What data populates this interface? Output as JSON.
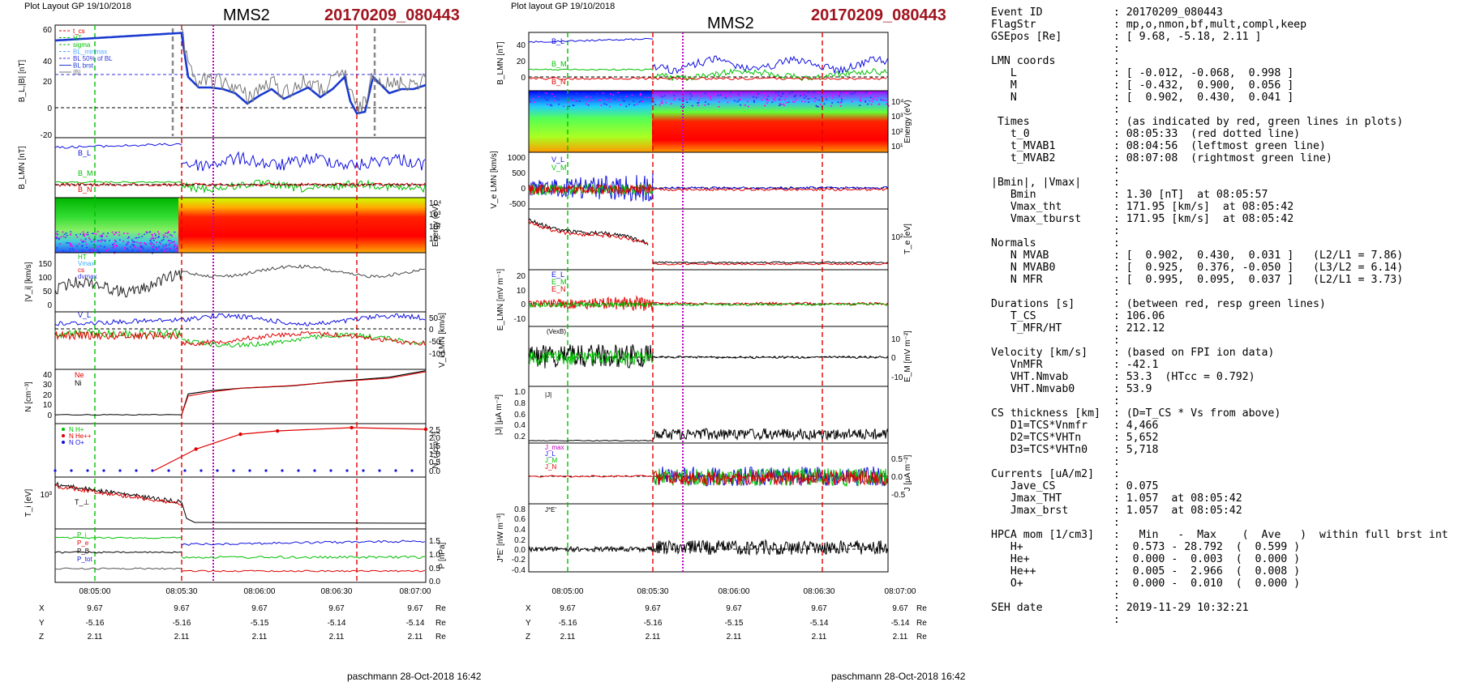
{
  "left_panel": {
    "layout_label": "Plot Layout GP 19/10/2018",
    "spacecraft": "MMS2",
    "event_id": "20170209_080443",
    "footer": "paschmann 28-Oct-2018 16:42",
    "time_ticks": [
      "08:05:00",
      "08:05:30",
      "08:06:00",
      "08:06:30",
      "08:07:00"
    ],
    "ephem_labels": [
      "X",
      "Y",
      "Z"
    ],
    "ephem_unit": "Re",
    "ephem_values": {
      "X": [
        "9.67",
        "9.67",
        "9.67",
        "9.67",
        "9.67"
      ],
      "Y": [
        "-5.16",
        "-5.16",
        "-5.15",
        "-5.14",
        "-5.14"
      ],
      "Z": [
        "2.11",
        "2.11",
        "2.11",
        "2.11",
        "2.11"
      ]
    }
  },
  "right_panel": {
    "layout_label": "Plot layout GP 19/10/2018",
    "spacecraft": "MMS2",
    "event_id": "20170209_080443",
    "footer": "paschmann 28-Oct-2018 16:42",
    "time_ticks": [
      "08:05:00",
      "08:05:30",
      "08:06:00",
      "08:06:30",
      "08:07:00"
    ],
    "ephem_labels": [
      "X",
      "Y",
      "Z"
    ],
    "ephem_unit": "Re",
    "ephem_values": {
      "X": [
        "9.67",
        "9.67",
        "9.67",
        "9.67",
        "9.67"
      ],
      "Y": [
        "-5.16",
        "-5.16",
        "-5.15",
        "-5.14",
        "-5.14"
      ],
      "Z": [
        "2.11",
        "2.11",
        "2.11",
        "2.11",
        "2.11"
      ]
    }
  },
  "chart_data": [
    {
      "type": "line",
      "panel": "left-1",
      "ylabel": "B_L, |B| [nT]",
      "ylim": [
        -20,
        55
      ],
      "yticks": [
        "60",
        "40",
        "20",
        "0",
        "-20"
      ],
      "legend": [
        "t_cs",
        "HT",
        "sigma",
        "BL_minmax",
        "BL 50% of BL",
        "BL brst",
        "|B|"
      ],
      "series": [
        {
          "name": "B_L brst",
          "x": [
            0,
            0.3,
            0.42,
            0.45,
            0.5,
            0.6,
            0.7,
            0.75,
            0.82,
            0.9,
            1.0
          ],
          "values": [
            45,
            50,
            52,
            8,
            5,
            4,
            15,
            1,
            -5,
            13,
            8
          ]
        }
      ]
    },
    {
      "type": "line",
      "panel": "left-2",
      "ylabel": "B_LMN [nT]",
      "legend": [
        "B_L",
        "B_M",
        "B_N"
      ]
    },
    {
      "type": "heatmap",
      "panel": "left-3",
      "ylabel": "Energy (eV)",
      "yticks": [
        "10^4",
        "10^3",
        "10^2",
        "10^1"
      ]
    },
    {
      "type": "line",
      "panel": "left-4",
      "ylabel": "|V_i| [km/s]",
      "yticks": [
        "150",
        "100",
        "50",
        "0"
      ],
      "legend": [
        "HT",
        "Vmax",
        "cs",
        "dvmax"
      ]
    },
    {
      "type": "line",
      "panel": "left-5",
      "ylabel": "V_i LMN [km/s]",
      "yticks": [
        "50",
        "0",
        "-50",
        "-100"
      ],
      "legend": [
        "V_L"
      ]
    },
    {
      "type": "line",
      "panel": "left-6",
      "ylabel": "N [cm^-3]",
      "yticks": [
        "40",
        "30",
        "20",
        "10",
        "0"
      ],
      "legend": [
        "Ne",
        "Ni"
      ]
    },
    {
      "type": "line",
      "panel": "left-7",
      "ylabel": "N_i [cm^-3]",
      "yticks": [
        "2.5",
        "2.0",
        "1.5",
        "1.0",
        "0.5",
        "0.0"
      ],
      "legend": [
        "N H+",
        "N He++",
        "N O+"
      ],
      "series": [
        {
          "name": "N He++",
          "x": [
            0.38,
            0.5,
            0.6,
            0.8,
            1.0
          ],
          "values": [
            1.3,
            2.2,
            2.4,
            2.6,
            2.5
          ]
        }
      ]
    },
    {
      "type": "line",
      "panel": "left-8",
      "ylabel": "T_i [eV]",
      "yticks": [
        "10^3"
      ],
      "legend": [
        "T_||",
        "T_⊥"
      ]
    },
    {
      "type": "line",
      "panel": "left-9",
      "ylabel": "P [nPa]",
      "yticks": [
        "1.5",
        "1.0",
        "0.5",
        "0.0"
      ],
      "legend": [
        "P_i",
        "P_e",
        "P_B",
        "P_tot"
      ]
    },
    {
      "type": "line",
      "panel": "right-1",
      "ylabel": "B_LMN [nT]",
      "yticks": [
        "40",
        "20",
        "0"
      ],
      "legend": [
        "B_L",
        "B_M",
        "B_N"
      ]
    },
    {
      "type": "heatmap",
      "panel": "right-2",
      "ylabel": "Energy (eV)",
      "yticks": [
        "10^4",
        "10^3",
        "10^2",
        "10^1"
      ]
    },
    {
      "type": "line",
      "panel": "right-3",
      "ylabel": "V_e LMN [km/s]",
      "yticks": [
        "1000",
        "500",
        "0",
        "-500"
      ],
      "legend": [
        "V_L",
        "V_M",
        "V_N"
      ]
    },
    {
      "type": "line",
      "panel": "right-4",
      "ylabel": "T_e [eV]",
      "yticks": [
        "10^2"
      ]
    },
    {
      "type": "line",
      "panel": "right-5",
      "ylabel": "E_LMN [mV m^-1]",
      "yticks": [
        "20",
        "10",
        "0",
        "-10"
      ],
      "legend": [
        "E_L",
        "E_M",
        "E_N"
      ]
    },
    {
      "type": "line",
      "panel": "right-6",
      "ylabel": "E_M [mV m^-2]",
      "yticks": [
        "10",
        "0",
        "-10"
      ],
      "legend": [
        "(VexB)"
      ]
    },
    {
      "type": "line",
      "panel": "right-7",
      "ylabel": "|J| [μA m^-2]",
      "yticks": [
        "1.0",
        "0.8",
        "0.6",
        "0.4",
        "0.2"
      ],
      "legend": [
        "|J|"
      ]
    },
    {
      "type": "line",
      "panel": "right-8",
      "ylabel": "J [μA m^-2]",
      "yticks": [
        "0.5",
        "0.0",
        "-0.5"
      ],
      "legend": [
        "J_max",
        "J_L",
        "J_M",
        "J_N"
      ]
    },
    {
      "type": "line",
      "panel": "right-9",
      "ylabel": "J*E' [nW m^-3]",
      "yticks": [
        "0.8",
        "0.6",
        "0.4",
        "0.2",
        "0.0",
        "-0.2",
        "-0.4"
      ],
      "legend": [
        "J*E'"
      ]
    }
  ],
  "info_lines": [
    [
      "Event ID",
      ": 20170209_080443"
    ],
    [
      "FlagStr",
      ": mp,o,nmon,bf,mult,compl,keep"
    ],
    [
      "GSEpos [Re]",
      ": [ 9.68, -5.18, 2.11 ]"
    ],
    [
      "",
      ":"
    ],
    [
      "LMN coords",
      ":"
    ],
    [
      "   L",
      ": [ -0.012, -0.068,  0.998 ]"
    ],
    [
      "   M",
      ": [ -0.432,  0.900,  0.056 ]"
    ],
    [
      "   N",
      ": [  0.902,  0.430,  0.041 ]"
    ],
    [
      "",
      ":"
    ],
    [
      " Times",
      ": (as indicated by red, green lines in plots)"
    ],
    [
      "   t_0",
      ": 08:05:33  (red dotted line)"
    ],
    [
      "   t_MVAB1",
      ": 08:04:56  (leftmost green line)"
    ],
    [
      "   t_MVAB2",
      ": 08:07:08  (rightmost green line)"
    ],
    [
      "",
      ":"
    ],
    [
      "|Bmin|, |Vmax|",
      ":"
    ],
    [
      "   Bmin",
      ": 1.30 [nT]  at 08:05:57"
    ],
    [
      "   Vmax_tht",
      ": 171.95 [km/s]  at 08:05:42"
    ],
    [
      "   Vmax_tburst",
      ": 171.95 [km/s]  at 08:05:42"
    ],
    [
      "",
      ":"
    ],
    [
      "Normals",
      ":"
    ],
    [
      "   N MVAB",
      ": [  0.902,  0.430,  0.031 ]   (L2/L1 = 7.86)"
    ],
    [
      "   N MVAB0",
      ": [  0.925,  0.376, -0.050 ]   (L3/L2 = 6.14)"
    ],
    [
      "   N MFR",
      ": [  0.995,  0.095,  0.037 ]   (L2/L1 = 3.73)"
    ],
    [
      "",
      ":"
    ],
    [
      "Durations [s]",
      ": (between red, resp green lines)"
    ],
    [
      "   T_CS",
      ": 106.06"
    ],
    [
      "   T_MFR/HT",
      ": 212.12"
    ],
    [
      "",
      ":"
    ],
    [
      "Velocity [km/s]",
      ": (based on FPI ion data)"
    ],
    [
      "   VnMFR",
      ": -42.1"
    ],
    [
      "   VHT.Nmvab",
      ": 53.3  (HTcc = 0.792)"
    ],
    [
      "   VHT.Nmvab0",
      ": 53.9"
    ],
    [
      "",
      ":"
    ],
    [
      "CS thickness [km]",
      ": (D=T_CS * Vs from above)"
    ],
    [
      "   D1=TCS*Vnmfr",
      ": 4,466"
    ],
    [
      "   D2=TCS*VHTn",
      ": 5,652"
    ],
    [
      "   D3=TCS*VHTn0",
      ": 5,718"
    ],
    [
      "",
      ":"
    ],
    [
      "Currents [uA/m2]",
      ":"
    ],
    [
      "   Jave_CS",
      ": 0.075"
    ],
    [
      "   Jmax_THT",
      ": 1.057  at 08:05:42"
    ],
    [
      "   Jmax_brst",
      ": 1.057  at 08:05:42"
    ],
    [
      "",
      ":"
    ],
    [
      "HPCA mom [1/cm3]",
      ":   Min   -  Max    (  Ave   )  within full brst int"
    ],
    [
      "   H+",
      ":  0.573 - 28.792  (  0.599 )"
    ],
    [
      "   He+",
      ":  0.000 -  0.003  (  0.000 )"
    ],
    [
      "   He++",
      ":  0.005 -  2.966  (  0.008 )"
    ],
    [
      "   O+",
      ":  0.000 -  0.010  (  0.000 )"
    ],
    [
      "",
      ":"
    ],
    [
      "SEH date",
      ": 2019-11-29 10:32:21"
    ],
    [
      "",
      ":"
    ]
  ],
  "colors": {
    "red": "#e00000",
    "green": "#00c000",
    "blue": "#1010e0",
    "magenta": "#c000c0",
    "title_red": "#a0141e"
  }
}
